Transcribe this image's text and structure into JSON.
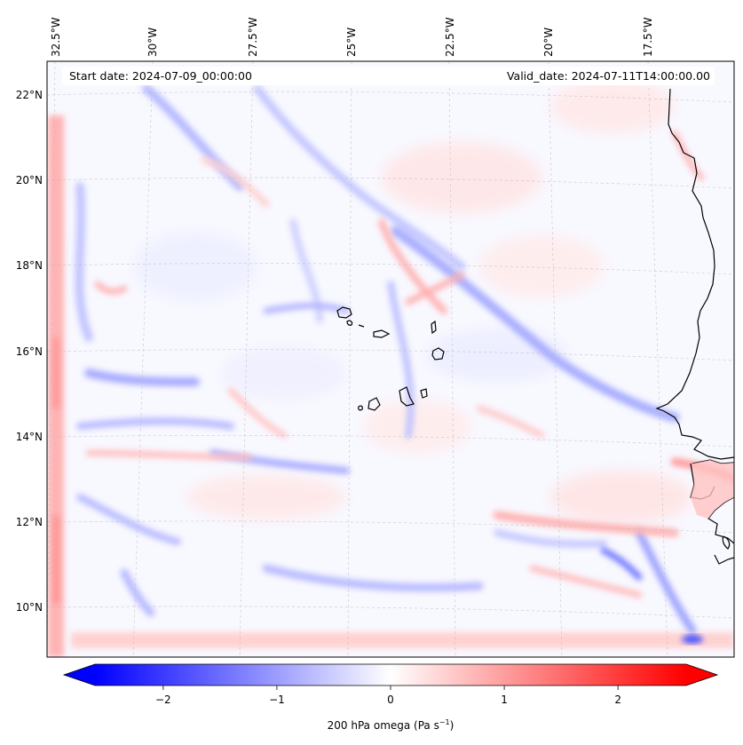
{
  "map": {
    "start_date": "Start date: 2024-07-09_00:00:00",
    "valid_date": "Valid_date: 2024-07-11T14:00:00.00",
    "lon_labels": [
      "32.5°W",
      "30°W",
      "27.5°W",
      "25°W",
      "22.5°W",
      "20°W",
      "17.5°W"
    ],
    "lat_labels": [
      "22°N",
      "20°N",
      "18°N",
      "16°N",
      "14°N",
      "12°N",
      "10°N"
    ],
    "field": "200 hPa omega",
    "colormap": "bwr",
    "value_range": [
      -2.6,
      2.6
    ],
    "gridlines": true
  },
  "colorbar": {
    "label": "200 hPa omega (Pa s",
    "label_exp": "−1",
    "label_close": ")",
    "ticks": [
      "−2",
      "−1",
      "0",
      "1",
      "2"
    ],
    "tick_values": [
      -2,
      -1,
      0,
      1,
      2
    ],
    "extend": "both"
  },
  "colors": {
    "min": "#0000ff",
    "mid": "#ffffff",
    "max": "#ff0000",
    "coast": "#000000"
  }
}
